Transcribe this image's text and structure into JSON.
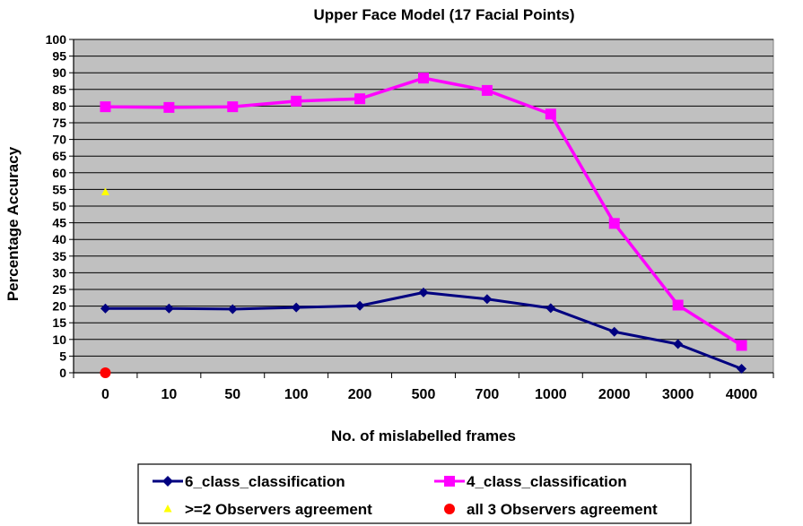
{
  "chart_data": {
    "type": "line",
    "title": "Upper Face Model (17 Facial Points)",
    "xlabel": "No. of mislabelled frames",
    "ylabel": "Percentage Accuracy",
    "categories": [
      "0",
      "10",
      "50",
      "100",
      "200",
      "500",
      "700",
      "1000",
      "2000",
      "3000",
      "4000"
    ],
    "ylim": [
      0,
      100
    ],
    "yticks": [
      0,
      5,
      10,
      15,
      20,
      25,
      30,
      35,
      40,
      45,
      50,
      55,
      60,
      65,
      70,
      75,
      80,
      85,
      90,
      95,
      100
    ],
    "grid": true,
    "legend_position": "bottom",
    "plot_background": "#c0c0c0",
    "series": [
      {
        "name": "6_class_classification",
        "values": [
          19.3,
          19.3,
          19.1,
          19.6,
          20.1,
          24.1,
          22.1,
          19.4,
          12.3,
          8.6,
          1.2
        ],
        "color": "#000080",
        "marker": "diamond"
      },
      {
        "name": "4_class_classification",
        "values": [
          79.8,
          79.6,
          79.8,
          81.5,
          82.2,
          88.4,
          84.7,
          77.6,
          44.8,
          20.3,
          8.2
        ],
        "color": "#ff00ff",
        "marker": "square"
      },
      {
        "name": ">=2 Observers agreement",
        "values": [
          54.2,
          null,
          null,
          null,
          null,
          null,
          null,
          null,
          null,
          null,
          null
        ],
        "color": "#ffff00",
        "marker": "triangle"
      },
      {
        "name": "all 3 Observers agreement",
        "values": [
          0,
          null,
          null,
          null,
          null,
          null,
          null,
          null,
          null,
          null,
          null
        ],
        "color": "#ff0000",
        "marker": "circle"
      }
    ]
  }
}
